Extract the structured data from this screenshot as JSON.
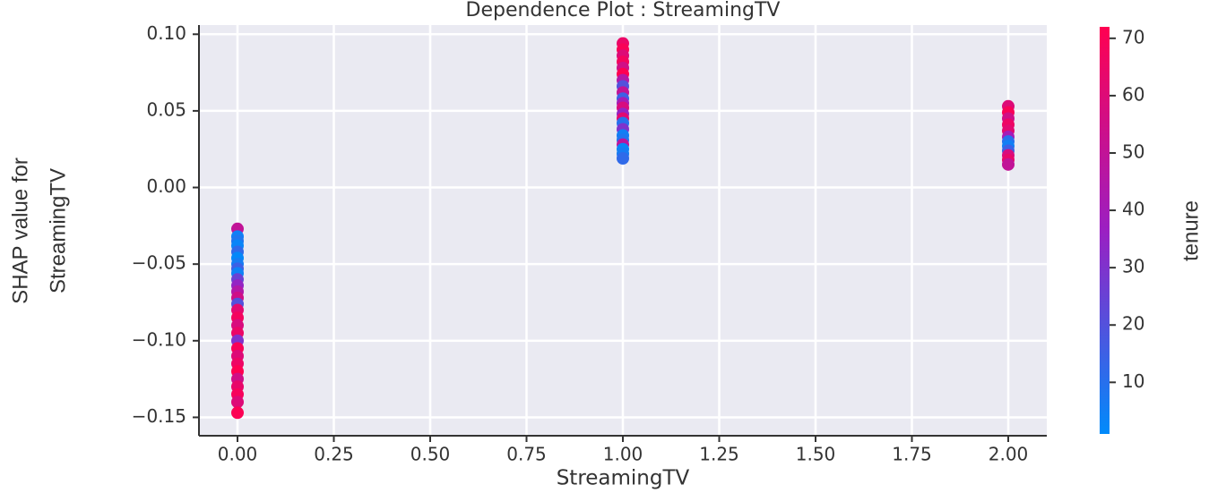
{
  "chart_data": {
    "type": "scatter",
    "title": "Dependence Plot : StreamingTV",
    "xlabel": "StreamingTV",
    "ylabel": [
      "SHAP value for",
      "StreamingTV"
    ],
    "colorbar_label": "tenure",
    "x": [
      0,
      0,
      0,
      0,
      0,
      0,
      0,
      0,
      0,
      0,
      0,
      0,
      0,
      0,
      0,
      0,
      0,
      0,
      0,
      0,
      0,
      0,
      0,
      0,
      0,
      0,
      0,
      0,
      1,
      1,
      1,
      1,
      1,
      1,
      1,
      1,
      1,
      1,
      1,
      1,
      1,
      1,
      1,
      1,
      1,
      1,
      1,
      1,
      1,
      1,
      2,
      2,
      2,
      2,
      2,
      2,
      2,
      2,
      2,
      2,
      2,
      2
    ],
    "values": [
      -0.027,
      -0.032,
      -0.035,
      -0.038,
      -0.042,
      -0.046,
      -0.05,
      -0.053,
      -0.056,
      -0.06,
      -0.064,
      -0.068,
      -0.072,
      -0.076,
      -0.08,
      -0.085,
      -0.09,
      -0.095,
      -0.1,
      -0.105,
      -0.11,
      -0.115,
      -0.12,
      -0.125,
      -0.13,
      -0.135,
      -0.14,
      -0.147,
      0.094,
      0.09,
      0.086,
      0.082,
      0.078,
      0.074,
      0.07,
      0.066,
      0.062,
      0.058,
      0.055,
      0.052,
      0.048,
      0.045,
      0.042,
      0.038,
      0.034,
      0.031,
      0.028,
      0.025,
      0.022,
      0.019,
      0.053,
      0.049,
      0.045,
      0.041,
      0.037,
      0.033,
      0.03,
      0.027,
      0.024,
      0.021,
      0.018,
      0.015
    ],
    "color_values": [
      50,
      5,
      8,
      3,
      12,
      2,
      6,
      15,
      4,
      25,
      35,
      45,
      55,
      20,
      62,
      68,
      58,
      65,
      30,
      70,
      60,
      66,
      72,
      55,
      64,
      69,
      60,
      71,
      65,
      70,
      60,
      68,
      55,
      72,
      45,
      20,
      50,
      15,
      40,
      58,
      35,
      62,
      10,
      30,
      5,
      8,
      48,
      3,
      6,
      12,
      60,
      70,
      55,
      66,
      62,
      40,
      10,
      5,
      15,
      58,
      64,
      50
    ],
    "colormap": [
      "#008bfb",
      "#9b1fc2",
      "#ff0051"
    ],
    "xlim": [
      -0.1,
      2.1
    ],
    "ylim": [
      -0.162,
      0.106
    ],
    "clim": [
      1,
      72
    ],
    "xticks": [
      {
        "value": 0,
        "label": "0.00"
      },
      {
        "value": 0.25,
        "label": "0.25"
      },
      {
        "value": 0.5,
        "label": "0.50"
      },
      {
        "value": 0.75,
        "label": "0.75"
      },
      {
        "value": 1,
        "label": "1.00"
      },
      {
        "value": 1.25,
        "label": "1.25"
      },
      {
        "value": 1.5,
        "label": "1.50"
      },
      {
        "value": 1.75,
        "label": "1.75"
      },
      {
        "value": 2,
        "label": "2.00"
      }
    ],
    "yticks": [
      {
        "value": -0.15,
        "label": "−0.15"
      },
      {
        "value": -0.1,
        "label": "−0.10"
      },
      {
        "value": -0.05,
        "label": "−0.05"
      },
      {
        "value": 0,
        "label": "0.00"
      },
      {
        "value": 0.05,
        "label": "0.05"
      },
      {
        "value": 0.1,
        "label": "0.10"
      }
    ],
    "cticks": [
      10,
      20,
      30,
      40,
      50,
      60,
      70
    ],
    "grid": true
  }
}
